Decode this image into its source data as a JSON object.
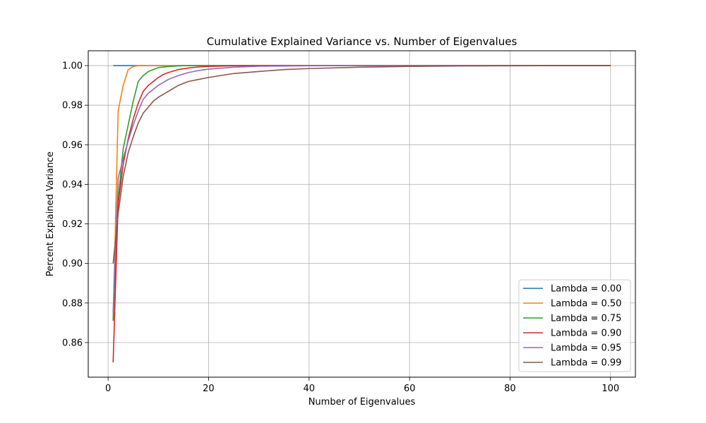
{
  "chart_data": {
    "type": "line",
    "title": "Cumulative Explained Variance vs. Number of Eigenvalues",
    "xlabel": "Number of Eigenvalues",
    "ylabel": "Percent Explained Variance",
    "xlim": [
      -3.95,
      104.95
    ],
    "ylim": [
      0.8425,
      1.0075
    ],
    "xticks": [
      0,
      20,
      40,
      60,
      80,
      100
    ],
    "xtick_labels": [
      "0",
      "20",
      "40",
      "60",
      "80",
      "100"
    ],
    "yticks": [
      0.86,
      0.88,
      0.9,
      0.92,
      0.94,
      0.96,
      0.98,
      1.0
    ],
    "ytick_labels": [
      "0.86",
      "0.88",
      "0.90",
      "0.92",
      "0.94",
      "0.96",
      "0.98",
      "1.00"
    ],
    "grid": true,
    "legend_position": "lower-right",
    "series": [
      {
        "name": "Lambda = 0.00",
        "color": "#1f77b4",
        "x": [
          1,
          2,
          3,
          5,
          10,
          20,
          40,
          60,
          80,
          100
        ],
        "y": [
          1.0,
          1.0,
          1.0,
          1.0,
          1.0,
          1.0,
          1.0,
          1.0,
          1.0,
          1.0
        ]
      },
      {
        "name": "Lambda = 0.50",
        "color": "#ff7f0e",
        "x": [
          1,
          2,
          3,
          4,
          5,
          6,
          7,
          10,
          20,
          40,
          60,
          80,
          100
        ],
        "y": [
          0.871,
          0.977,
          0.99,
          0.998,
          0.9995,
          1.0,
          1.0,
          1.0,
          1.0,
          1.0,
          1.0,
          1.0,
          1.0
        ]
      },
      {
        "name": "Lambda = 0.75",
        "color": "#2ca02c",
        "x": [
          1,
          2,
          3,
          4,
          5,
          6,
          7,
          8,
          9,
          10,
          12,
          15,
          20,
          40,
          60,
          80,
          100
        ],
        "y": [
          0.871,
          0.932,
          0.958,
          0.97,
          0.982,
          0.992,
          0.995,
          0.997,
          0.998,
          0.999,
          0.9995,
          1.0,
          1.0,
          1.0,
          1.0,
          1.0,
          1.0
        ]
      },
      {
        "name": "Lambda = 0.90",
        "color": "#d62728",
        "x": [
          1,
          2,
          3,
          4,
          5,
          6,
          7,
          8,
          9,
          10,
          11,
          12,
          14,
          16,
          18,
          20,
          25,
          30,
          40,
          60,
          80,
          100
        ],
        "y": [
          0.85,
          0.93,
          0.95,
          0.963,
          0.973,
          0.981,
          0.987,
          0.99,
          0.992,
          0.994,
          0.9955,
          0.9965,
          0.998,
          0.9988,
          0.9993,
          0.9996,
          0.9999,
          1.0,
          1.0,
          1.0,
          1.0,
          1.0
        ]
      },
      {
        "name": "Lambda = 0.95",
        "color": "#9467bd",
        "x": [
          1,
          2,
          3,
          4,
          5,
          6,
          7,
          8,
          9,
          10,
          12,
          14,
          16,
          18,
          20,
          25,
          30,
          40,
          50,
          60,
          80,
          100
        ],
        "y": [
          0.875,
          0.943,
          0.953,
          0.962,
          0.97,
          0.977,
          0.983,
          0.986,
          0.988,
          0.99,
          0.993,
          0.995,
          0.9965,
          0.9975,
          0.9982,
          0.9992,
          0.9997,
          0.9999,
          1.0,
          1.0,
          1.0,
          1.0
        ]
      },
      {
        "name": "Lambda = 0.99",
        "color": "#8c564b",
        "x": [
          1,
          2,
          3,
          4,
          5,
          6,
          7,
          8,
          9,
          10,
          12,
          14,
          16,
          18,
          20,
          25,
          30,
          35,
          40,
          50,
          60,
          70,
          80,
          90,
          100
        ],
        "y": [
          0.9,
          0.925,
          0.944,
          0.956,
          0.964,
          0.971,
          0.976,
          0.979,
          0.982,
          0.984,
          0.987,
          0.99,
          0.992,
          0.993,
          0.994,
          0.996,
          0.997,
          0.998,
          0.9985,
          0.9992,
          0.9996,
          0.9998,
          0.9999,
          1.0,
          1.0
        ]
      }
    ]
  }
}
